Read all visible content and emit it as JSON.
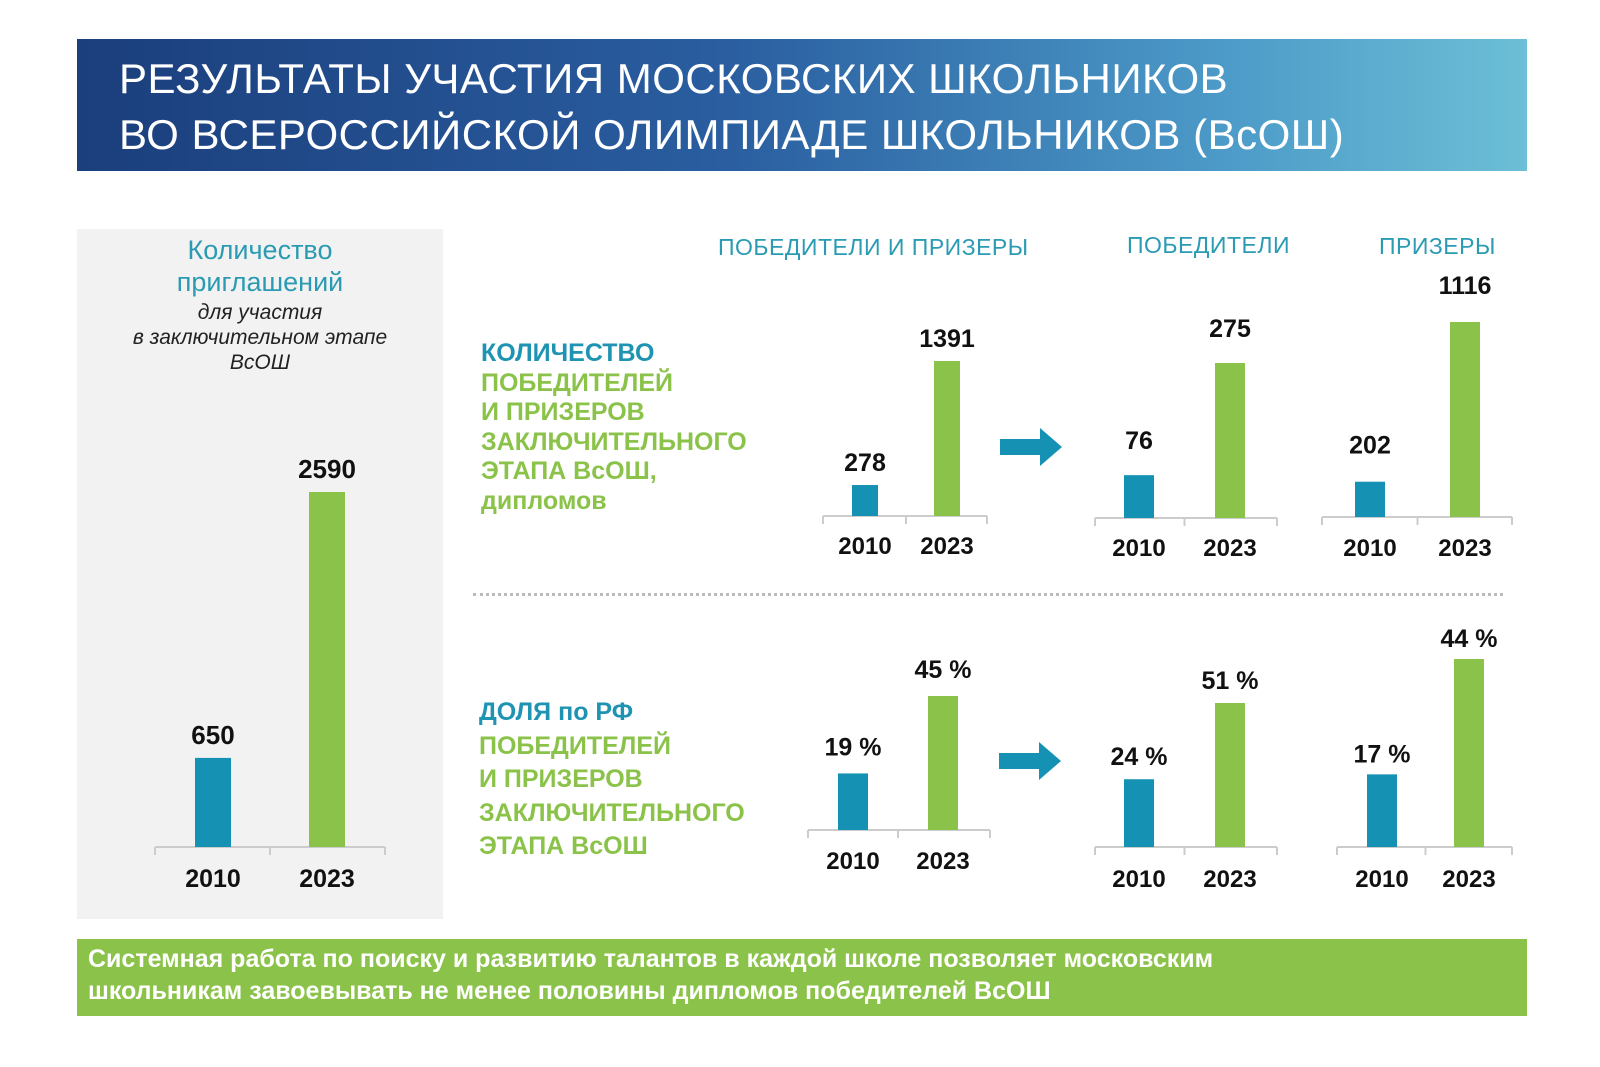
{
  "header": {
    "title_line_1": "РЕЗУЛЬТАТЫ УЧАСТИЯ МОСКОВСКИХ ШКОЛЬНИКОВ",
    "title_line_2": "ВО ВСЕРОССИЙСКОЙ ОЛИМПИАДЕ ШКОЛЬНИКОВ (ВсОШ)"
  },
  "left_panel": {
    "title_line_1": "Количество",
    "title_line_2": "приглашений",
    "sub_line_1": "для участия",
    "sub_line_2": "в заключительном этапе",
    "sub_line_3": "ВсОШ"
  },
  "columns": {
    "all": "ПОБЕДИТЕЛИ И ПРИЗЕРЫ",
    "winners": "ПОБЕДИТЕЛИ",
    "prizewinners": "ПРИЗЕРЫ"
  },
  "row_count": {
    "line_1": "КОЛИЧЕСТВО",
    "line_2": "ПОБЕДИТЕЛЕЙ",
    "line_3": "И ПРИЗЕРОВ",
    "line_4": "ЗАКЛЮЧИТЕЛЬНОГО",
    "line_5": "ЭТАПА ВсОШ,",
    "line_6": "дипломов"
  },
  "row_share": {
    "line_1": "ДОЛЯ по РФ",
    "line_2": "ПОБЕДИТЕЛЕЙ",
    "line_3": "И ПРИЗЕРОВ",
    "line_4": "ЗАКЛЮЧИТЕЛЬНОГО",
    "line_5": "ЭТАПА ВсОШ"
  },
  "colors": {
    "year_2010": "#1592b3",
    "year_2023": "#8bc34a",
    "accent": "#2a9bb3",
    "header_dark": "#1b3e7c"
  },
  "icons": {
    "arrow": "arrow-right-icon"
  },
  "chart_data": [
    {
      "id": "invitations",
      "type": "bar",
      "categories": [
        "2010",
        "2023"
      ],
      "values": [
        650,
        2590
      ],
      "labels": [
        "650",
        "2590"
      ]
    },
    {
      "id": "count-all",
      "type": "bar",
      "categories": [
        "2010",
        "2023"
      ],
      "values": [
        278,
        1391
      ],
      "labels": [
        "278",
        "1391"
      ]
    },
    {
      "id": "count-winners",
      "type": "bar",
      "categories": [
        "2010",
        "2023"
      ],
      "values": [
        76,
        275
      ],
      "labels": [
        "76",
        "275"
      ]
    },
    {
      "id": "count-prize",
      "type": "bar",
      "categories": [
        "2010",
        "2023"
      ],
      "values": [
        202,
        1116
      ],
      "labels": [
        "202",
        "1116"
      ]
    },
    {
      "id": "share-all",
      "type": "bar",
      "categories": [
        "2010",
        "2023"
      ],
      "values": [
        19,
        45
      ],
      "labels": [
        "19 %",
        "45 %"
      ]
    },
    {
      "id": "share-winners",
      "type": "bar",
      "categories": [
        "2010",
        "2023"
      ],
      "values": [
        24,
        51
      ],
      "labels": [
        "24 %",
        "51 %"
      ]
    },
    {
      "id": "share-prize",
      "type": "bar",
      "categories": [
        "2010",
        "2023"
      ],
      "values": [
        17,
        44
      ],
      "labels": [
        "17 %",
        "44 %"
      ]
    }
  ],
  "footer": {
    "line_1": "Системная работа по поиску и развитию талантов в каждой школе позволяет московским",
    "line_2": "школьникам завоевывать не менее половины дипломов победителей ВсОШ"
  }
}
